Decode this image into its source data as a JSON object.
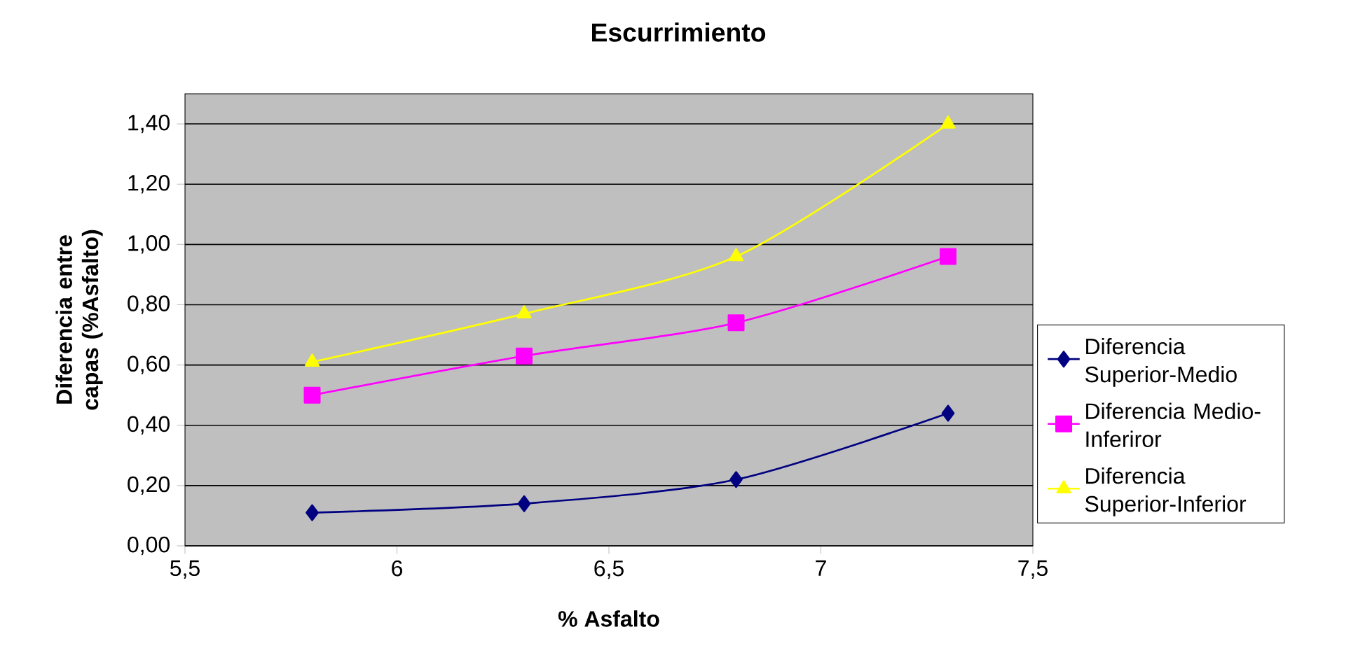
{
  "chart_data": {
    "type": "line",
    "title": "Escurrimiento",
    "xlabel": "% Asfalto",
    "ylabel": "Diferencia entre capas (%Asfalto)",
    "x": [
      5.8,
      6.3,
      6.8,
      7.3
    ],
    "series": [
      {
        "name": "Diferencia Superior-Medio",
        "color": "#000080",
        "marker": "diamond",
        "values": [
          0.11,
          0.14,
          0.22,
          0.44
        ]
      },
      {
        "name": "Diferencia Medio-Inferiror",
        "color": "#ff00ff",
        "marker": "square",
        "values": [
          0.5,
          0.63,
          0.74,
          0.96
        ]
      },
      {
        "name": "Diferencia Superior-Inferior",
        "color": "#ffff00",
        "marker": "triangle",
        "values": [
          0.61,
          0.77,
          0.96,
          1.4
        ]
      }
    ],
    "xlim": [
      5.5,
      7.5
    ],
    "xticks": [
      {
        "value": 5.5,
        "label": "5,5"
      },
      6,
      {
        "value": 6.5,
        "label": "6,5"
      },
      7,
      {
        "value": 7.5,
        "label": "7,5"
      }
    ],
    "ylim": [
      0,
      1.5
    ],
    "yticks": [
      {
        "value": 0,
        "label": "0,00"
      },
      {
        "value": 0.2,
        "label": "0,20"
      },
      {
        "value": 0.4,
        "label": "0,40"
      },
      {
        "value": 0.6,
        "label": "0,60"
      },
      {
        "value": 0.8,
        "label": "0,80"
      },
      {
        "value": 1.0,
        "label": "1,00"
      },
      {
        "value": 1.2,
        "label": "1,20"
      },
      {
        "value": 1.4,
        "label": "1,40"
      }
    ],
    "grid": "y",
    "legend": "right",
    "line_style": "solid"
  }
}
